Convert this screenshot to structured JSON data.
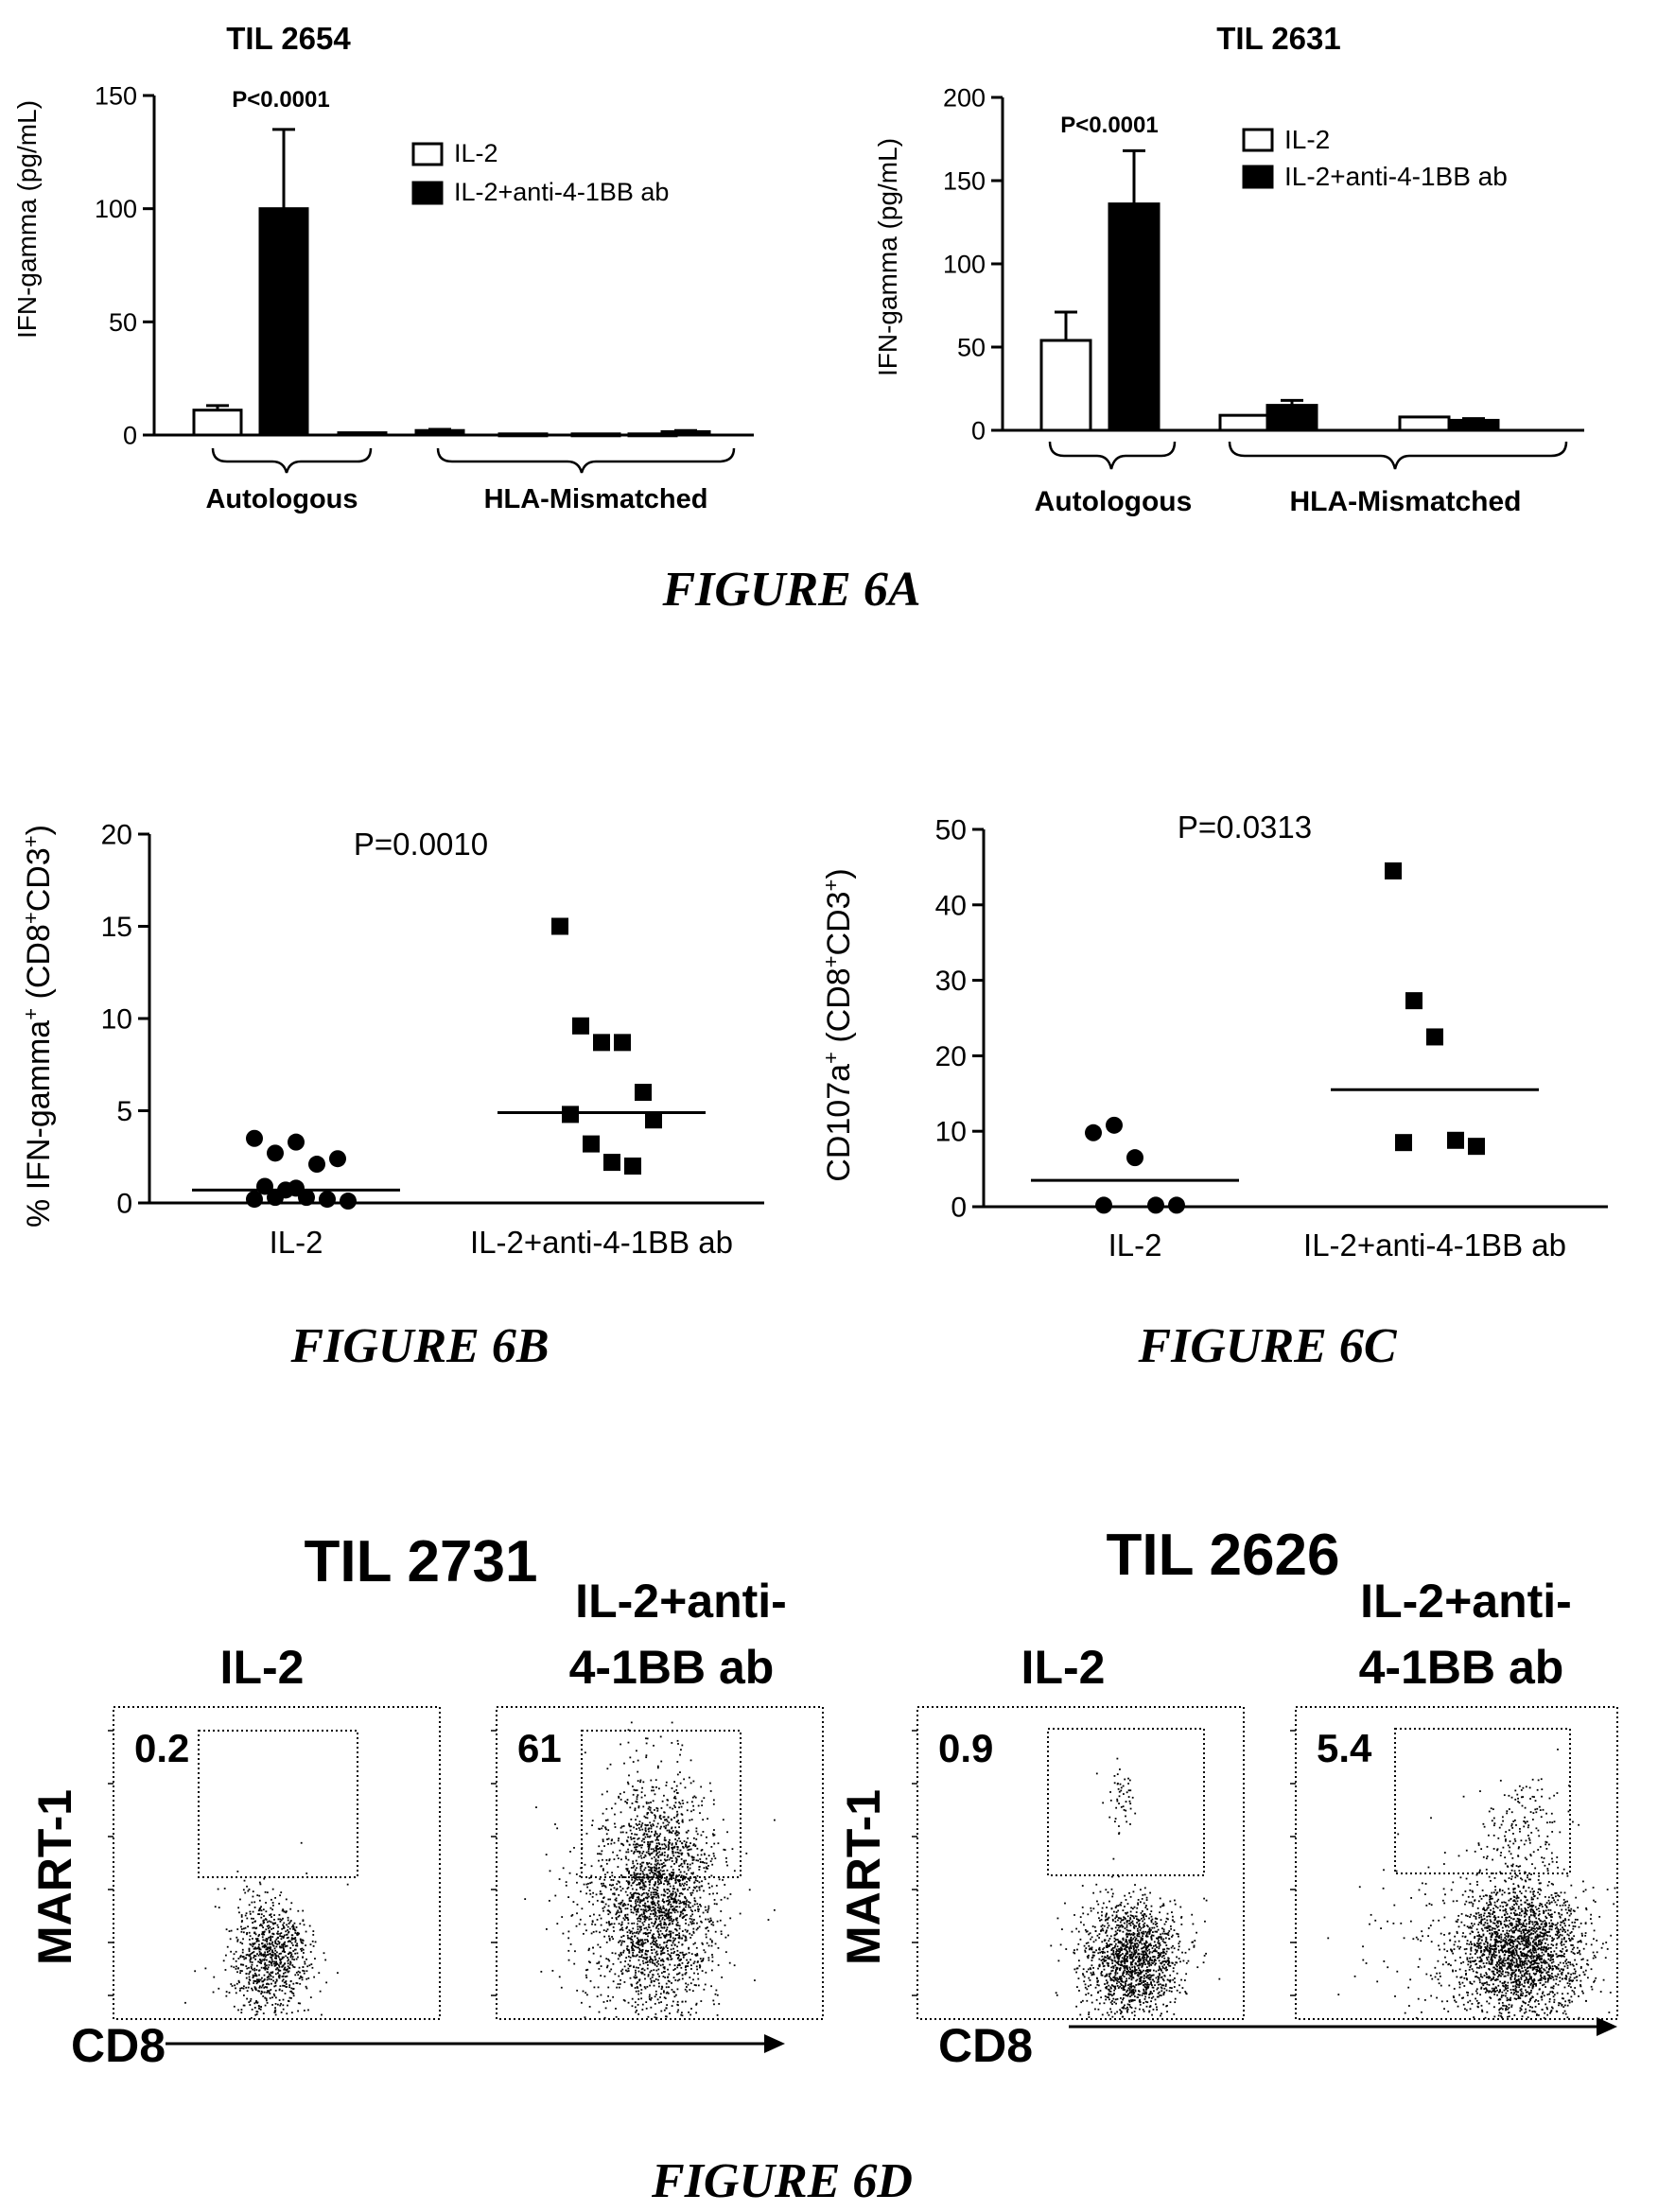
{
  "figure_6a": {
    "caption": "FIGURE 6A",
    "p_value": "P<0.0001",
    "groups": [
      "Autologous",
      "HLA-Mismatched"
    ],
    "legend": [
      "IL-2",
      "IL-2+anti-4-1BB ab"
    ]
  },
  "figure_6b": {
    "caption": "FIGURE 6B"
  },
  "figure_6c": {
    "caption": "FIGURE 6C"
  },
  "figure_6d": {
    "caption": "FIGURE 6D",
    "panels": [
      {
        "title": "TIL 2731",
        "conditions": [
          {
            "label": [
              "IL-2"
            ],
            "value": "0.2",
            "gate_fraction": 0.002
          },
          {
            "label": [
              "IL-2+anti-",
              "4-1BB ab"
            ],
            "value": "61",
            "gate_fraction": 0.61
          }
        ],
        "ylabel": "MART-1",
        "xlabel": "CD8"
      },
      {
        "title": "TIL 2626",
        "conditions": [
          {
            "label": [
              "IL-2"
            ],
            "value": "0.9",
            "gate_fraction": 0.009
          },
          {
            "label": [
              "IL-2+anti-",
              "4-1BB ab"
            ],
            "value": "5.4",
            "gate_fraction": 0.054
          }
        ],
        "ylabel": "MART-1",
        "xlabel": "CD8"
      }
    ]
  },
  "chart_data": [
    {
      "id": "6A-TIL2654",
      "type": "bar",
      "title": "TIL 2654",
      "ylabel": "IFN-gamma (pg/mL)",
      "ylim": [
        0,
        150
      ],
      "yticks": [
        0,
        50,
        100,
        150
      ],
      "group_labels": [
        "Autologous",
        "HLA-Mismatched"
      ],
      "categories": [
        "Autologous",
        "HLA-Mismatched 1",
        "HLA-Mismatched 2",
        "HLA-Mismatched 3"
      ],
      "annotation": "P<0.0001",
      "legend_position": "top-right",
      "series": [
        {
          "name": "IL-2",
          "fill": "#ffffff",
          "values": [
            11,
            1,
            0.5,
            0.5
          ],
          "errors": [
            2,
            0,
            0,
            0
          ]
        },
        {
          "name": "IL-2+anti-4-1BB ab",
          "fill": "#000000",
          "values": [
            100,
            2,
            0.5,
            1.5
          ],
          "errors": [
            35,
            0.5,
            0,
            0.5
          ]
        }
      ]
    },
    {
      "id": "6A-TIL2631",
      "type": "bar",
      "title": "TIL 2631",
      "ylabel": "IFN-gamma (pg/mL)",
      "ylim": [
        0,
        200
      ],
      "yticks": [
        0,
        50,
        100,
        150,
        200
      ],
      "group_labels": [
        "Autologous",
        "HLA-Mismatched"
      ],
      "categories": [
        "Autologous",
        "HLA-Mismatched 1",
        "HLA-Mismatched 2"
      ],
      "annotation": "P<0.0001",
      "legend_position": "top-right",
      "series": [
        {
          "name": "IL-2",
          "fill": "#ffffff",
          "values": [
            54,
            9,
            8
          ],
          "errors": [
            17,
            0,
            0
          ]
        },
        {
          "name": "IL-2+anti-4-1BB ab",
          "fill": "#000000",
          "values": [
            136,
            15,
            6
          ],
          "errors": [
            32,
            3,
            1
          ]
        }
      ]
    },
    {
      "id": "6B",
      "type": "scatter",
      "ylabel": "% IFN-gamma+ (CD8+CD3+)",
      "ylim": [
        0,
        20
      ],
      "yticks": [
        0,
        5,
        10,
        15,
        20
      ],
      "categories": [
        "IL-2",
        "IL-2+anti-4-1BB ab"
      ],
      "annotation": "P=0.0010",
      "series": [
        {
          "name": "IL-2",
          "marker": "circle",
          "median": 0.7,
          "values": [
            3.5,
            2.7,
            3.3,
            2.1,
            2.4,
            0.9,
            0.7,
            0.3,
            0.2,
            0.1,
            0.2,
            0.3,
            0.8
          ]
        },
        {
          "name": "IL-2+anti-4-1BB ab",
          "marker": "square",
          "median": 4.9,
          "values": [
            15.0,
            9.6,
            8.7,
            8.7,
            6.0,
            4.8,
            3.2,
            2.2,
            2.0,
            4.5
          ]
        }
      ]
    },
    {
      "id": "6C",
      "type": "scatter",
      "ylabel": "CD107a+ (CD8+CD3+)",
      "ylim": [
        0,
        50
      ],
      "yticks": [
        0,
        10,
        20,
        30,
        40,
        50
      ],
      "categories": [
        "IL-2",
        "IL-2+anti-4-1BB ab"
      ],
      "annotation": "P=0.0313",
      "series": [
        {
          "name": "IL-2",
          "marker": "circle",
          "median": 3.5,
          "values": [
            9.8,
            10.8,
            6.5,
            0.2,
            0.2,
            0.2
          ]
        },
        {
          "name": "IL-2+anti-4-1BB ab",
          "marker": "square",
          "median": 15.5,
          "values": [
            44.5,
            27.3,
            22.5,
            8.8,
            8.0,
            8.5
          ]
        }
      ]
    }
  ]
}
